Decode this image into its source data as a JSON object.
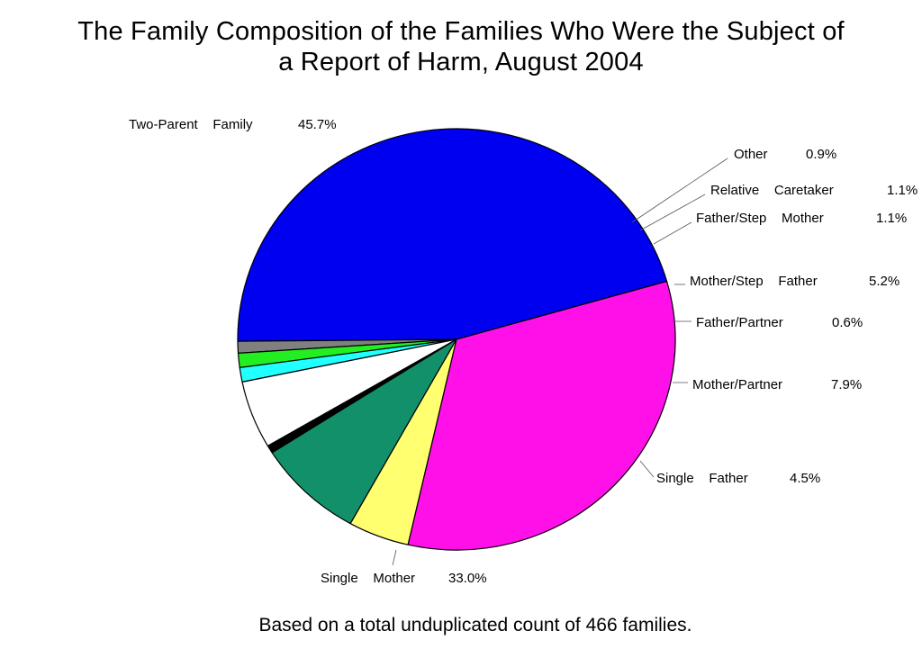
{
  "chart_data": {
    "type": "pie",
    "title_line1": "The Family Composition of the Families Who Were the Subject of",
    "title_line2": "a Report of Harm, August 2004",
    "footnote": "Based on a total unduplicated count of 466 families.",
    "slices": [
      {
        "name": "Two-Parent Family",
        "label_text": "Two-Parent    Family",
        "pct_text": "45.7%",
        "value": 45.7,
        "color": "#0000f0"
      },
      {
        "name": "Other",
        "label_text": "Other",
        "pct_text": "0.9%",
        "value": 0.9,
        "color": "#808080"
      },
      {
        "name": "Relative Caretaker",
        "label_text": "Relative    Caretaker",
        "pct_text": "1.1%",
        "value": 1.1,
        "color": "#22ee22"
      },
      {
        "name": "Father/Step Mother",
        "label_text": "Father/Step    Mother",
        "pct_text": "1.1%",
        "value": 1.1,
        "color": "#22ffff"
      },
      {
        "name": "Mother/Step Father",
        "label_text": "Mother/Step    Father",
        "pct_text": "5.2%",
        "value": 5.2,
        "color": "#ffffff"
      },
      {
        "name": "Father/Partner",
        "label_text": "Father/Partner",
        "pct_text": "0.6%",
        "value": 0.6,
        "color": "#000000"
      },
      {
        "name": "Mother/Partner",
        "label_text": "Mother/Partner",
        "pct_text": "7.9%",
        "value": 7.9,
        "color": "#12906a"
      },
      {
        "name": "Single Father",
        "label_text": "Single    Father",
        "pct_text": "4.5%",
        "value": 4.5,
        "color": "#ffff70"
      },
      {
        "name": "Single Mother",
        "label_text": "Single    Mother",
        "pct_text": "33.0%",
        "value": 33.0,
        "color": "#ff10e8"
      }
    ]
  }
}
